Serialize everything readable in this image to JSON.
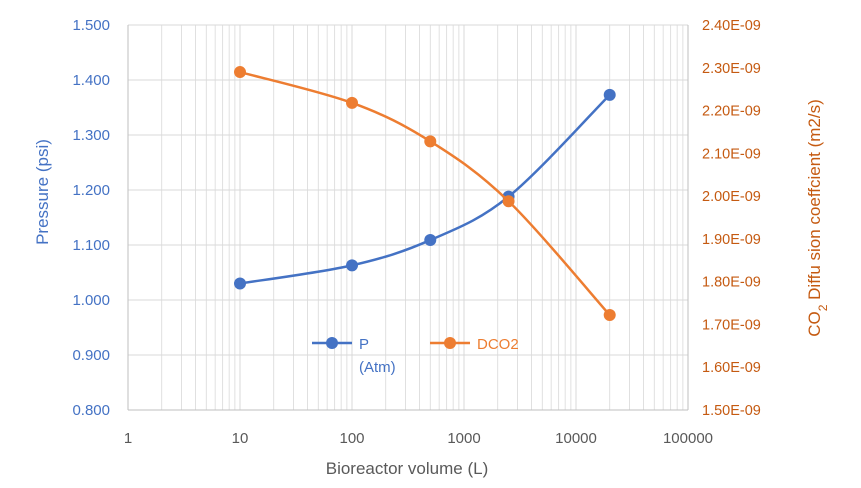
{
  "chart_data": {
    "type": "line",
    "xscale": "log",
    "xlabel": "Bioreactor volume (L)",
    "xlim": [
      1,
      100000
    ],
    "xticks": [
      "1",
      "10",
      "100",
      "1000",
      "10000",
      "100000"
    ],
    "ylabel_left": "Pressure (psi)",
    "ylim_left": [
      0.8,
      1.5
    ],
    "yticks_left": [
      "0.800",
      "0.900",
      "1.000",
      "1.100",
      "1.200",
      "1.300",
      "1.400",
      "1.500"
    ],
    "ylabel_right_prefix": "CO",
    "ylabel_right_sub": "2",
    "ylabel_right_suffix": " Diffu sion coeffcient (m2/s)",
    "ylim_right": [
      1.5e-09,
      2.4e-09
    ],
    "yticks_right": [
      "1.50E-09",
      "1.60E-09",
      "1.70E-09",
      "1.80E-09",
      "1.90E-09",
      "2.00E-09",
      "2.10E-09",
      "2.20E-09",
      "2.30E-09",
      "2.40E-09"
    ],
    "grid": true,
    "legend_position": "bottom-center",
    "series": [
      {
        "name": "P",
        "legend_label_line1": "P",
        "legend_label_line2": "(Atm)",
        "axis": "left",
        "color": "#4472c4",
        "x": [
          10,
          100,
          500,
          2500,
          20000
        ],
        "y": [
          1.03,
          1.063,
          1.109,
          1.188,
          1.373
        ]
      },
      {
        "name": "DCO2",
        "legend_label_line1": "DCO2",
        "axis": "right",
        "color": "#ed7d31",
        "x": [
          10,
          100,
          500,
          2500,
          20000
        ],
        "y": [
          2.29e-09,
          2.218e-09,
          2.128e-09,
          1.988e-09,
          1.722e-09
        ]
      }
    ],
    "colors": {
      "left_axis": "#4472c4",
      "right_axis": "#c55a11",
      "grid": "#d9d9d9",
      "axis_line": "#bfbfbf",
      "x_text": "#595959"
    }
  }
}
